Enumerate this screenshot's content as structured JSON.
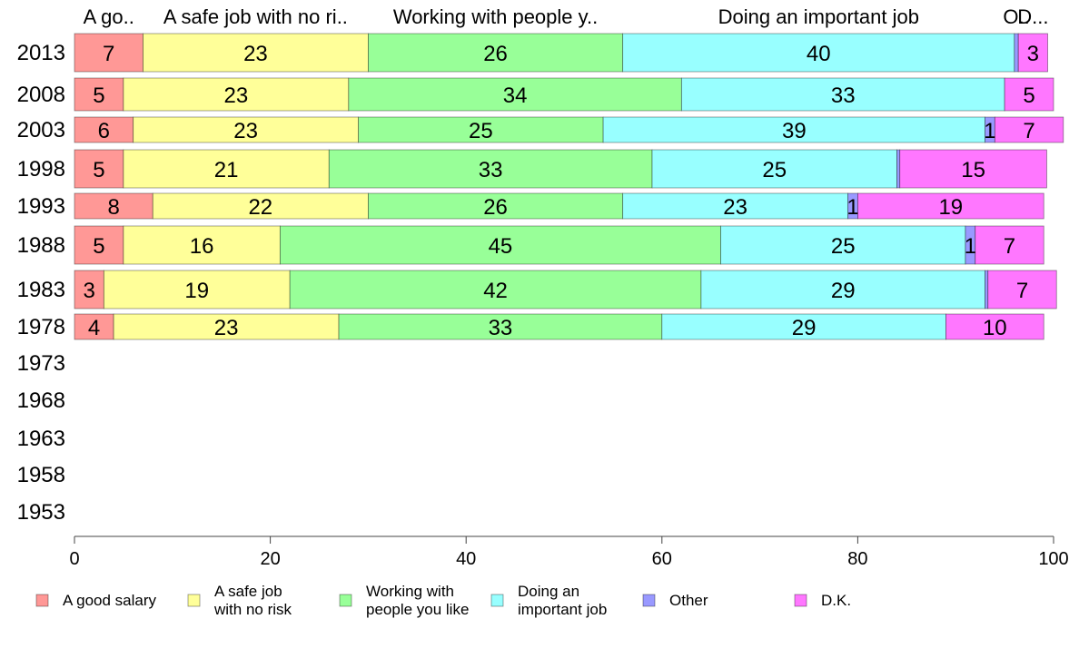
{
  "chart_data": {
    "type": "bar",
    "orientation": "horizontal",
    "stacked": true,
    "categories": [
      "2013",
      "2008",
      "2003",
      "1998",
      "1993",
      "1988",
      "1983",
      "1978",
      "1973",
      "1968",
      "1963",
      "1958",
      "1953"
    ],
    "series": [
      {
        "name": "A good salary",
        "short_label": "A go..",
        "color": "#ff9896",
        "values": [
          7,
          5,
          6,
          5,
          8,
          5,
          3,
          4,
          null,
          null,
          null,
          null,
          null
        ]
      },
      {
        "name": "A safe job with no risk",
        "legend_lines": [
          "A safe job",
          "with no risk"
        ],
        "short_label": "A safe job with no ri..",
        "color": "#ffff99",
        "values": [
          23,
          23,
          23,
          21,
          22,
          16,
          19,
          23,
          null,
          null,
          null,
          null,
          null
        ]
      },
      {
        "name": "Working with people you like",
        "legend_lines": [
          "Working with",
          "people you like"
        ],
        "short_label": "Working with people y..",
        "color": "#98ff98",
        "values": [
          26,
          34,
          25,
          33,
          26,
          45,
          42,
          33,
          null,
          null,
          null,
          null,
          null
        ]
      },
      {
        "name": "Doing an important job",
        "legend_lines": [
          "Doing an",
          "important job"
        ],
        "short_label": "Doing an important job",
        "color": "#98ffff",
        "values": [
          40,
          33,
          39,
          25,
          23,
          25,
          29,
          29,
          null,
          null,
          null,
          null,
          null
        ]
      },
      {
        "name": "Other",
        "short_label": "O..",
        "color": "#9999ff",
        "values": [
          0.4,
          0,
          1,
          0.3,
          1,
          1,
          0.3,
          0,
          null,
          null,
          null,
          null,
          null
        ],
        "labels": [
          "",
          "",
          "1",
          "",
          "1",
          "1",
          "",
          "",
          "",
          "",
          "",
          "",
          ""
        ]
      },
      {
        "name": "D.K.",
        "short_label": "D...",
        "color": "#ff77ff",
        "values": [
          3,
          5,
          7,
          15,
          19,
          7,
          7,
          10,
          null,
          null,
          null,
          null,
          null
        ]
      }
    ],
    "xlim": [
      0,
      100
    ],
    "xticks": [
      0,
      20,
      40,
      60,
      80,
      100
    ],
    "grid": false,
    "legend": "bottom",
    "title": "",
    "xlabel": "",
    "ylabel": ""
  }
}
